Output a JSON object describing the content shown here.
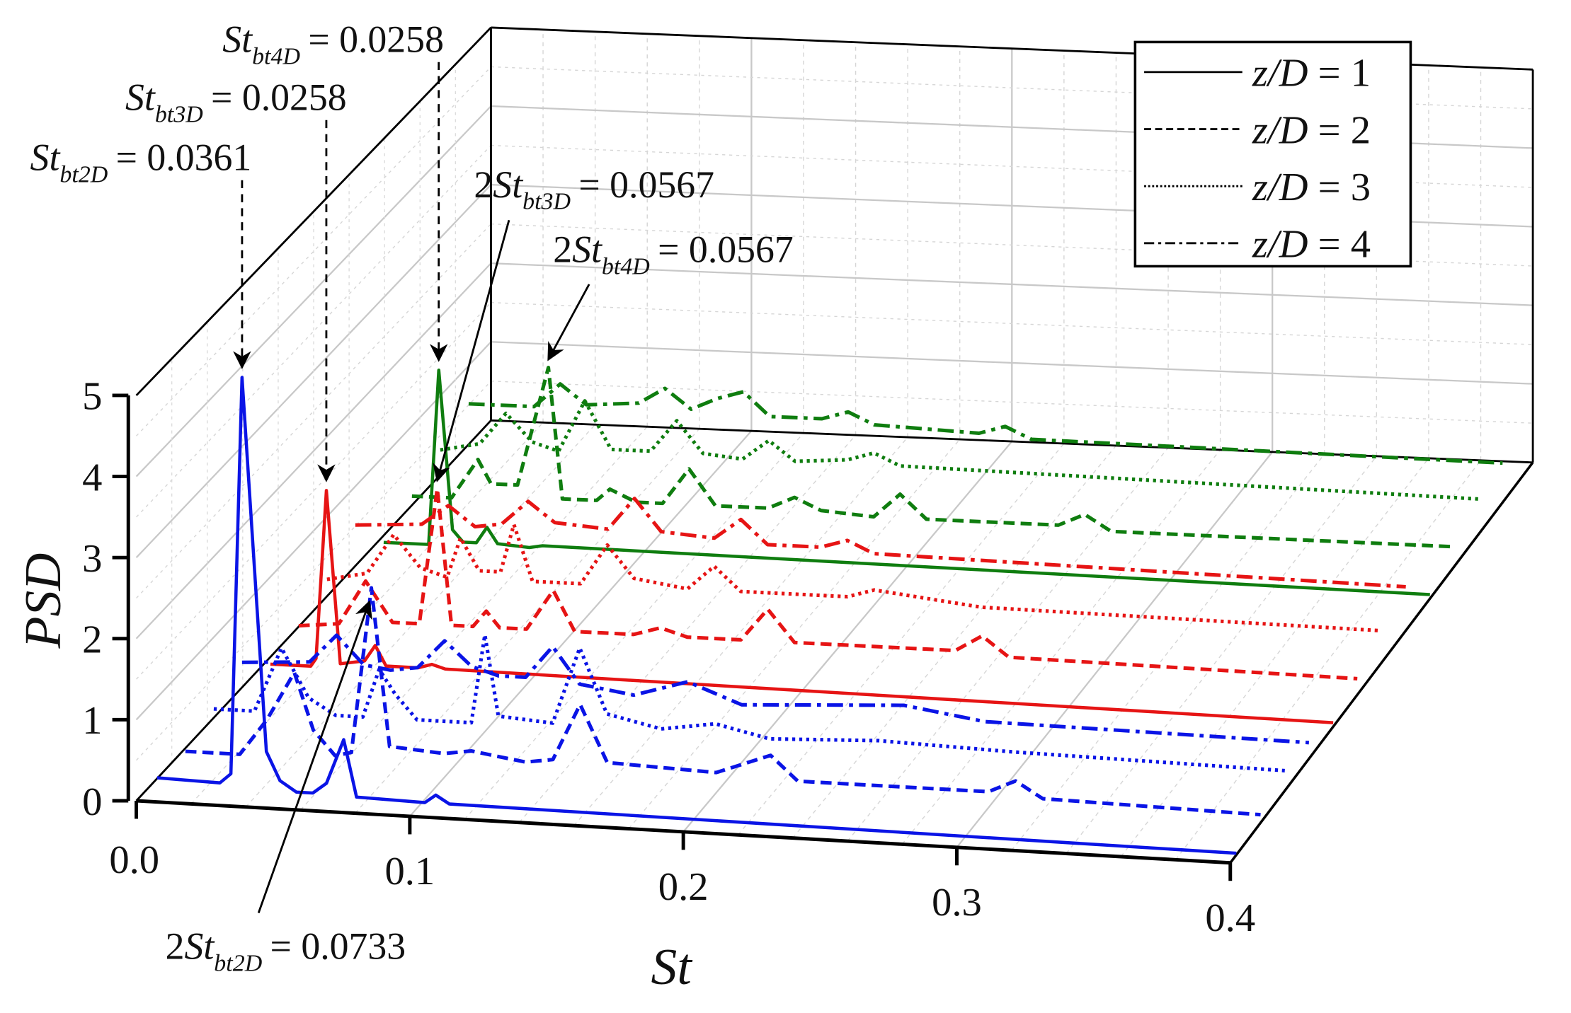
{
  "chart_data": {
    "type": "line",
    "subtype": "3d-waterfall",
    "xlabel": "St",
    "ylabel": "PSD",
    "xlim": [
      0,
      0.4
    ],
    "ylim": [
      0,
      5
    ],
    "x_ticks": [
      "0.0",
      "0.1",
      "0.2",
      "0.3",
      "0.4"
    ],
    "y_ticks": [
      "0",
      "1",
      "2",
      "3",
      "4",
      "5"
    ],
    "grid": true,
    "legend_position": "top-right",
    "legend": [
      {
        "label": "z/D = 1",
        "style": "solid"
      },
      {
        "label": "z/D = 2",
        "style": "dashed"
      },
      {
        "label": "z/D = 3",
        "style": "dotted"
      },
      {
        "label": "z/D = 4",
        "style": "dashdot"
      }
    ],
    "groups": [
      {
        "color": "#0a14e6",
        "series": [
          {
            "z_over_D": 1,
            "points": [
              [
                0.005,
                0.2
              ],
              [
                0.028,
                0.18
              ],
              [
                0.032,
                0.3
              ],
              [
                0.0361,
                5.2
              ],
              [
                0.045,
                0.6
              ],
              [
                0.05,
                0.25
              ],
              [
                0.056,
                0.12
              ],
              [
                0.062,
                0.12
              ],
              [
                0.067,
                0.25
              ],
              [
                0.0733,
                0.8
              ],
              [
                0.078,
                0.1
              ],
              [
                0.103,
                0.08
              ],
              [
                0.107,
                0.18
              ],
              [
                0.112,
                0.08
              ],
              [
                0.4,
                0.02
              ]
            ]
          },
          {
            "z_over_D": 2,
            "points": [
              [
                0.005,
                0.15
              ],
              [
                0.025,
                0.15
              ],
              [
                0.035,
                0.6
              ],
              [
                0.045,
                1.2
              ],
              [
                0.052,
                0.5
              ],
              [
                0.06,
                0.2
              ],
              [
                0.066,
                0.25
              ],
              [
                0.0733,
                2.3
              ],
              [
                0.08,
                0.35
              ],
              [
                0.1,
                0.3
              ],
              [
                0.11,
                0.35
              ],
              [
                0.12,
                0.3
              ],
              [
                0.13,
                0.25
              ],
              [
                0.14,
                0.3
              ],
              [
                0.15,
                1.0
              ],
              [
                0.16,
                0.3
              ],
              [
                0.2,
                0.25
              ],
              [
                0.22,
                0.5
              ],
              [
                0.23,
                0.2
              ],
              [
                0.3,
                0.2
              ],
              [
                0.31,
                0.35
              ],
              [
                0.32,
                0.15
              ],
              [
                0.4,
                0.1
              ]
            ]
          },
          {
            "z_over_D": 3,
            "points": [
              [
                0.005,
                0.3
              ],
              [
                0.02,
                0.3
              ],
              [
                0.03,
                1.1
              ],
              [
                0.04,
                0.5
              ],
              [
                0.05,
                0.3
              ],
              [
                0.06,
                0.3
              ],
              [
                0.066,
                0.9
              ],
              [
                0.072,
                0.6
              ],
              [
                0.08,
                0.3
              ],
              [
                0.1,
                0.3
              ],
              [
                0.105,
                1.4
              ],
              [
                0.11,
                0.4
              ],
              [
                0.13,
                0.35
              ],
              [
                0.14,
                1.3
              ],
              [
                0.15,
                0.5
              ],
              [
                0.17,
                0.35
              ],
              [
                0.19,
                0.45
              ],
              [
                0.21,
                0.3
              ],
              [
                0.25,
                0.35
              ],
              [
                0.3,
                0.3
              ],
              [
                0.4,
                0.25
              ]
            ]
          },
          {
            "z_over_D": 4,
            "points": [
              [
                0.005,
                0.5
              ],
              [
                0.03,
                0.55
              ],
              [
                0.04,
                0.9
              ],
              [
                0.05,
                0.55
              ],
              [
                0.06,
                0.5
              ],
              [
                0.07,
                0.55
              ],
              [
                0.08,
                0.9
              ],
              [
                0.09,
                0.6
              ],
              [
                0.1,
                0.5
              ],
              [
                0.11,
                0.5
              ],
              [
                0.12,
                0.9
              ],
              [
                0.13,
                0.45
              ],
              [
                0.15,
                0.35
              ],
              [
                0.17,
                0.55
              ],
              [
                0.19,
                0.3
              ],
              [
                0.22,
                0.35
              ],
              [
                0.25,
                0.4
              ],
              [
                0.28,
                0.25
              ],
              [
                0.4,
                0.2
              ]
            ]
          }
        ]
      },
      {
        "color": "#e61414",
        "series": [
          {
            "z_over_D": 1,
            "points": [
              [
                0.005,
                0.1
              ],
              [
                0.02,
                0.1
              ],
              [
                0.022,
                0.2
              ],
              [
                0.0258,
                2.3
              ],
              [
                0.031,
                0.15
              ],
              [
                0.04,
                0.2
              ],
              [
                0.044,
                0.4
              ],
              [
                0.048,
                0.15
              ],
              [
                0.06,
                0.15
              ],
              [
                0.065,
                0.2
              ],
              [
                0.07,
                0.15
              ],
              [
                0.4,
                0.05
              ]
            ]
          },
          {
            "z_over_D": 2,
            "points": [
              [
                0.005,
                0.2
              ],
              [
                0.02,
                0.25
              ],
              [
                0.03,
                0.8
              ],
              [
                0.04,
                0.3
              ],
              [
                0.05,
                0.3
              ],
              [
                0.0567,
                2.0
              ],
              [
                0.062,
                0.3
              ],
              [
                0.07,
                0.3
              ],
              [
                0.075,
                0.5
              ],
              [
                0.08,
                0.3
              ],
              [
                0.09,
                0.3
              ],
              [
                0.1,
                0.8
              ],
              [
                0.108,
                0.3
              ],
              [
                0.13,
                0.3
              ],
              [
                0.14,
                0.4
              ],
              [
                0.15,
                0.3
              ],
              [
                0.17,
                0.3
              ],
              [
                0.18,
                0.7
              ],
              [
                0.19,
                0.3
              ],
              [
                0.25,
                0.3
              ],
              [
                0.26,
                0.5
              ],
              [
                0.27,
                0.25
              ],
              [
                0.4,
                0.2
              ]
            ]
          },
          {
            "z_over_D": 3,
            "points": [
              [
                0.005,
                0.4
              ],
              [
                0.02,
                0.5
              ],
              [
                0.03,
                1.0
              ],
              [
                0.04,
                0.6
              ],
              [
                0.05,
                0.5
              ],
              [
                0.055,
                1.0
              ],
              [
                0.062,
                0.6
              ],
              [
                0.07,
                0.6
              ],
              [
                0.075,
                1.2
              ],
              [
                0.082,
                0.5
              ],
              [
                0.1,
                0.5
              ],
              [
                0.11,
                1.0
              ],
              [
                0.12,
                0.6
              ],
              [
                0.14,
                0.5
              ],
              [
                0.15,
                0.8
              ],
              [
                0.16,
                0.5
              ],
              [
                0.2,
                0.5
              ],
              [
                0.21,
                0.6
              ],
              [
                0.25,
                0.45
              ],
              [
                0.4,
                0.4
              ]
            ]
          },
          {
            "z_over_D": 4,
            "points": [
              [
                0.005,
                0.7
              ],
              [
                0.03,
                0.75
              ],
              [
                0.04,
                1.0
              ],
              [
                0.05,
                0.75
              ],
              [
                0.06,
                0.8
              ],
              [
                0.07,
                1.1
              ],
              [
                0.08,
                0.85
              ],
              [
                0.1,
                0.8
              ],
              [
                0.11,
                1.2
              ],
              [
                0.12,
                0.8
              ],
              [
                0.14,
                0.75
              ],
              [
                0.15,
                1.0
              ],
              [
                0.16,
                0.7
              ],
              [
                0.18,
                0.7
              ],
              [
                0.19,
                0.8
              ],
              [
                0.2,
                0.65
              ],
              [
                0.3,
                0.6
              ],
              [
                0.4,
                0.55
              ]
            ]
          }
        ]
      },
      {
        "color": "#0f7d0f",
        "series": [
          {
            "z_over_D": 1,
            "points": [
              [
                0.005,
                0.1
              ],
              [
                0.022,
                0.1
              ],
              [
                0.0258,
                2.3
              ],
              [
                0.031,
                0.3
              ],
              [
                0.035,
                0.15
              ],
              [
                0.04,
                0.15
              ],
              [
                0.044,
                0.35
              ],
              [
                0.048,
                0.15
              ],
              [
                0.06,
                0.12
              ],
              [
                0.065,
                0.15
              ],
              [
                0.4,
                0.05
              ]
            ]
          },
          {
            "z_over_D": 2,
            "points": [
              [
                0.005,
                0.3
              ],
              [
                0.02,
                0.3
              ],
              [
                0.03,
                0.8
              ],
              [
                0.035,
                0.5
              ],
              [
                0.045,
                0.5
              ],
              [
                0.0567,
                2.0
              ],
              [
                0.062,
                0.35
              ],
              [
                0.075,
                0.35
              ],
              [
                0.08,
                0.5
              ],
              [
                0.09,
                0.35
              ],
              [
                0.1,
                0.35
              ],
              [
                0.11,
                0.8
              ],
              [
                0.12,
                0.35
              ],
              [
                0.14,
                0.35
              ],
              [
                0.15,
                0.5
              ],
              [
                0.16,
                0.35
              ],
              [
                0.18,
                0.3
              ],
              [
                0.19,
                0.6
              ],
              [
                0.2,
                0.3
              ],
              [
                0.25,
                0.3
              ],
              [
                0.26,
                0.45
              ],
              [
                0.27,
                0.25
              ],
              [
                0.4,
                0.25
              ]
            ]
          },
          {
            "z_over_D": 3,
            "points": [
              [
                0.005,
                0.5
              ],
              [
                0.02,
                0.6
              ],
              [
                0.03,
                1.0
              ],
              [
                0.04,
                0.65
              ],
              [
                0.05,
                0.55
              ],
              [
                0.06,
                1.2
              ],
              [
                0.07,
                0.6
              ],
              [
                0.085,
                0.6
              ],
              [
                0.095,
                1.0
              ],
              [
                0.105,
                0.6
              ],
              [
                0.12,
                0.55
              ],
              [
                0.13,
                0.8
              ],
              [
                0.14,
                0.55
              ],
              [
                0.16,
                0.6
              ],
              [
                0.17,
                0.7
              ],
              [
                0.18,
                0.55
              ],
              [
                0.4,
                0.45
              ]
            ]
          },
          {
            "z_over_D": 4,
            "points": [
              [
                0.005,
                0.7
              ],
              [
                0.03,
                0.7
              ],
              [
                0.04,
                1.0
              ],
              [
                0.05,
                0.75
              ],
              [
                0.07,
                0.8
              ],
              [
                0.08,
                1.0
              ],
              [
                0.09,
                0.75
              ],
              [
                0.1,
                0.9
              ],
              [
                0.11,
                1.0
              ],
              [
                0.12,
                0.7
              ],
              [
                0.14,
                0.7
              ],
              [
                0.15,
                0.8
              ],
              [
                0.16,
                0.65
              ],
              [
                0.2,
                0.6
              ],
              [
                0.21,
                0.7
              ],
              [
                0.22,
                0.55
              ],
              [
                0.4,
                0.5
              ]
            ]
          }
        ]
      }
    ],
    "annotations": [
      {
        "prefix": "",
        "main": "St",
        "sub": "bt4D",
        "value": "= 0.0258",
        "group": 2,
        "series": 0,
        "st": 0.0258
      },
      {
        "prefix": "",
        "main": "St",
        "sub": "bt3D",
        "value": "= 0.0258",
        "group": 1,
        "series": 0,
        "st": 0.0258
      },
      {
        "prefix": "",
        "main": "St",
        "sub": "bt2D",
        "value": "= 0.0361",
        "group": 0,
        "series": 0,
        "st": 0.0361
      },
      {
        "prefix": "2",
        "main": "St",
        "sub": "bt3D",
        "value": "= 0.0567",
        "group": 1,
        "series": 1,
        "st": 0.0567
      },
      {
        "prefix": "2",
        "main": "St",
        "sub": "bt4D",
        "value": "= 0.0567",
        "group": 2,
        "series": 1,
        "st": 0.0567
      },
      {
        "prefix": "2",
        "main": "St",
        "sub": "bt2D",
        "value": "= 0.0733",
        "group": 0,
        "series": 1,
        "st": 0.0733
      }
    ]
  }
}
